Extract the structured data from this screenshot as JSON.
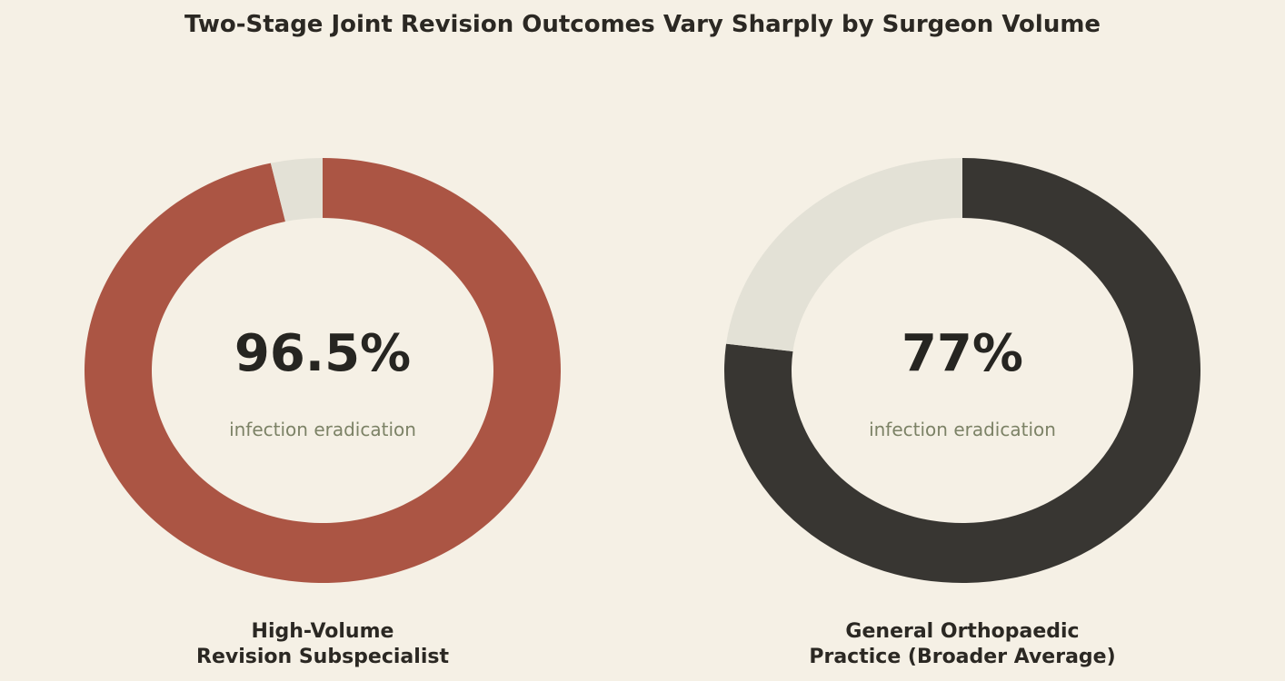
{
  "title": "Two-Stage Joint Revision Outcomes Vary Sharply by Surgeon Volume",
  "chart_data": [
    {
      "type": "pie",
      "subtype": "donut",
      "value": 96.5,
      "remainder": 3.5,
      "display_value": "96.5%",
      "caption": "infection eradication",
      "label_lines": [
        "High-Volume",
        "Revision Subspecialist"
      ],
      "color": "#ab5544",
      "track_color": "#e3e1d6",
      "caption_color": "#7c8266"
    },
    {
      "type": "pie",
      "subtype": "donut",
      "value": 77,
      "remainder": 23,
      "display_value": "77%",
      "caption": "infection eradication",
      "label_lines": [
        "General Orthopaedic",
        "Practice (Broader Average)"
      ],
      "color": "#383632",
      "track_color": "#e3e1d6",
      "caption_color": "#7c8266"
    }
  ]
}
